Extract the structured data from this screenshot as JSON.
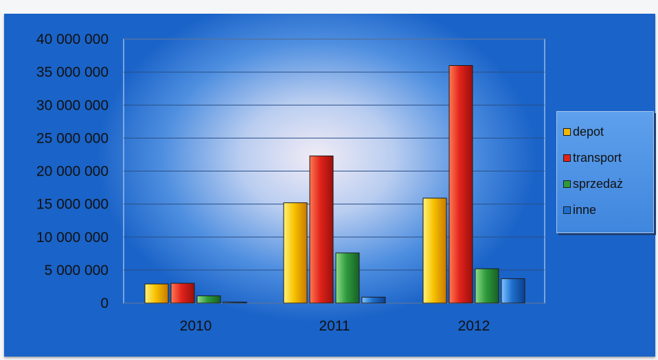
{
  "colors": {
    "depot": "#f5b800",
    "transport": "#e1231b",
    "sprzedaz": "#2f9a3c",
    "inne": "#1e6fcf",
    "background": "#1a63c8"
  },
  "chart_data": {
    "type": "bar",
    "categories": [
      "2010",
      "2011",
      "2012"
    ],
    "series": [
      {
        "name": "depot",
        "values": [
          2900000,
          15200000,
          15900000
        ]
      },
      {
        "name": "transport",
        "values": [
          3000000,
          22300000,
          36000000
        ]
      },
      {
        "name": "sprzedaż",
        "values": [
          1100000,
          7600000,
          5200000
        ]
      },
      {
        "name": "inne",
        "values": [
          100000,
          900000,
          3700000
        ]
      }
    ],
    "ylim": [
      0,
      40000000
    ],
    "yticks": [
      0,
      5000000,
      10000000,
      15000000,
      20000000,
      25000000,
      30000000,
      35000000,
      40000000
    ],
    "ytick_labels": [
      "0",
      "5 000 000",
      "10 000 000",
      "15 000 000",
      "20 000 000",
      "25 000 000",
      "30 000 000",
      "35 000 000",
      "40 000 000"
    ],
    "grid": true,
    "legend_position": "right"
  }
}
